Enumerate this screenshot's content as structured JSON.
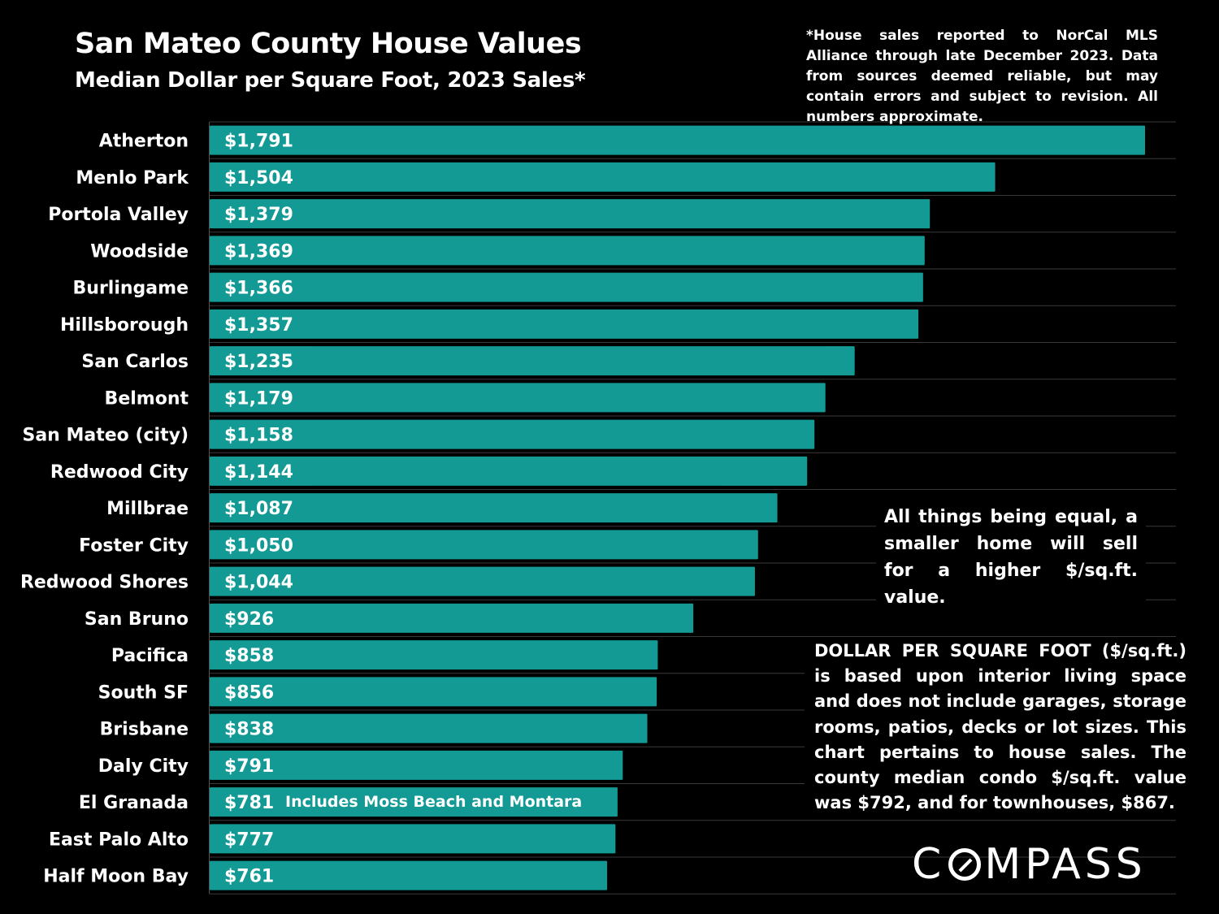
{
  "chart_data": {
    "type": "bar",
    "orientation": "horizontal",
    "title": "San Mateo County House Values",
    "subtitle": "Median Dollar per Square Foot, 2023 Sales*",
    "categories": [
      "Atherton",
      "Menlo Park",
      "Portola Valley",
      "Woodside",
      "Burlingame",
      "Hillsborough",
      "San Carlos",
      "Belmont",
      "San Mateo (city)",
      "Redwood City",
      "Millbrae",
      "Foster City",
      "Redwood Shores",
      "San Bruno",
      "Pacifica",
      "South SF",
      "Brisbane",
      "Daly City",
      "El Granada",
      "East Palo Alto",
      "Half Moon Bay"
    ],
    "values": [
      1791,
      1504,
      1379,
      1369,
      1366,
      1357,
      1235,
      1179,
      1158,
      1144,
      1087,
      1050,
      1044,
      926,
      858,
      856,
      838,
      791,
      781,
      777,
      761
    ],
    "labels": [
      "$1,791",
      "$1,504",
      "$1,379",
      "$1,369",
      "$1,366",
      "$1,357",
      "$1,235",
      "$1,179",
      "$1,158",
      "$1,144",
      "$1,087",
      "$1,050",
      "$1,044",
      "$926",
      "$858",
      "$856",
      "$838",
      "$791",
      "$781",
      "$777",
      "$761"
    ],
    "xlim": [
      0,
      1850
    ],
    "bar_color": "#139a94",
    "grid": true,
    "bar_notes": [
      {
        "category": "El Granada",
        "text": "Includes Moss Beach and Montara"
      }
    ]
  },
  "footnote": "*House sales reported to NorCal MLS Alliance through late December 2023. Data from sources deemed reliable, but may contain errors and subject to revision. All numbers approximate.",
  "annotation_small_home": "All things being equal, a smaller home will sell for a higher $/sq.ft. value.",
  "annotation_dpsf": "DOLLAR PER SQUARE FOOT ($/sq.ft.) is based upon interior living space and does not include garages, storage rooms, patios, decks or lot sizes. This chart pertains to house sales. The county median condo $/sq.ft. value was $792, and for townhouses, $867.",
  "logo": {
    "text_left": "C",
    "text_right": "MPASS",
    "full": "COMPASS"
  },
  "colors": {
    "background": "#000000",
    "bar": "#139a94",
    "grid": "#3a3a3a",
    "text": "#ffffff"
  }
}
